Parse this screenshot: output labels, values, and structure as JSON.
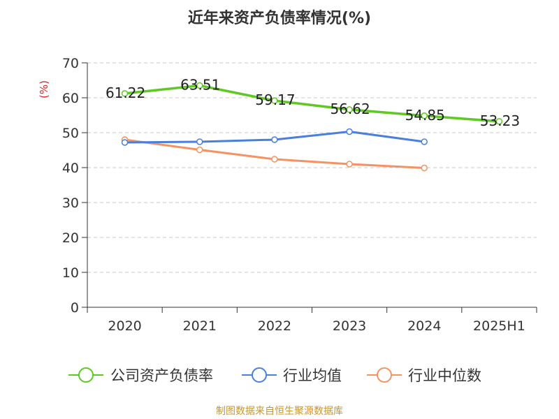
{
  "chart_data": {
    "type": "line",
    "title": "近年来资产负债率情况(%)",
    "ylabel": "(%)",
    "xlabel": "",
    "categories": [
      "2020",
      "2021",
      "2022",
      "2023",
      "2024",
      "2025H1"
    ],
    "ylim": [
      0,
      70
    ],
    "yticks": [
      0,
      10,
      20,
      30,
      40,
      50,
      60,
      70
    ],
    "grid": true,
    "legend_position": "bottom",
    "series": [
      {
        "name": "公司资产负债率",
        "color": "#5fc923",
        "values": [
          61.22,
          63.51,
          59.17,
          56.62,
          54.85,
          53.23
        ],
        "labels": [
          "61.22",
          "63.51",
          "59.17",
          "56.62",
          "54.85",
          "53.23"
        ]
      },
      {
        "name": "行业均值",
        "color": "#4a7fdb",
        "values": [
          47.2,
          47.4,
          48.0,
          50.3,
          47.4,
          null
        ],
        "labels": []
      },
      {
        "name": "行业中位数",
        "color": "#f59262",
        "values": [
          48.0,
          45.1,
          42.4,
          41.0,
          39.9,
          null
        ],
        "labels": []
      }
    ]
  },
  "footer": "制图数据来自恒生聚源数据库"
}
